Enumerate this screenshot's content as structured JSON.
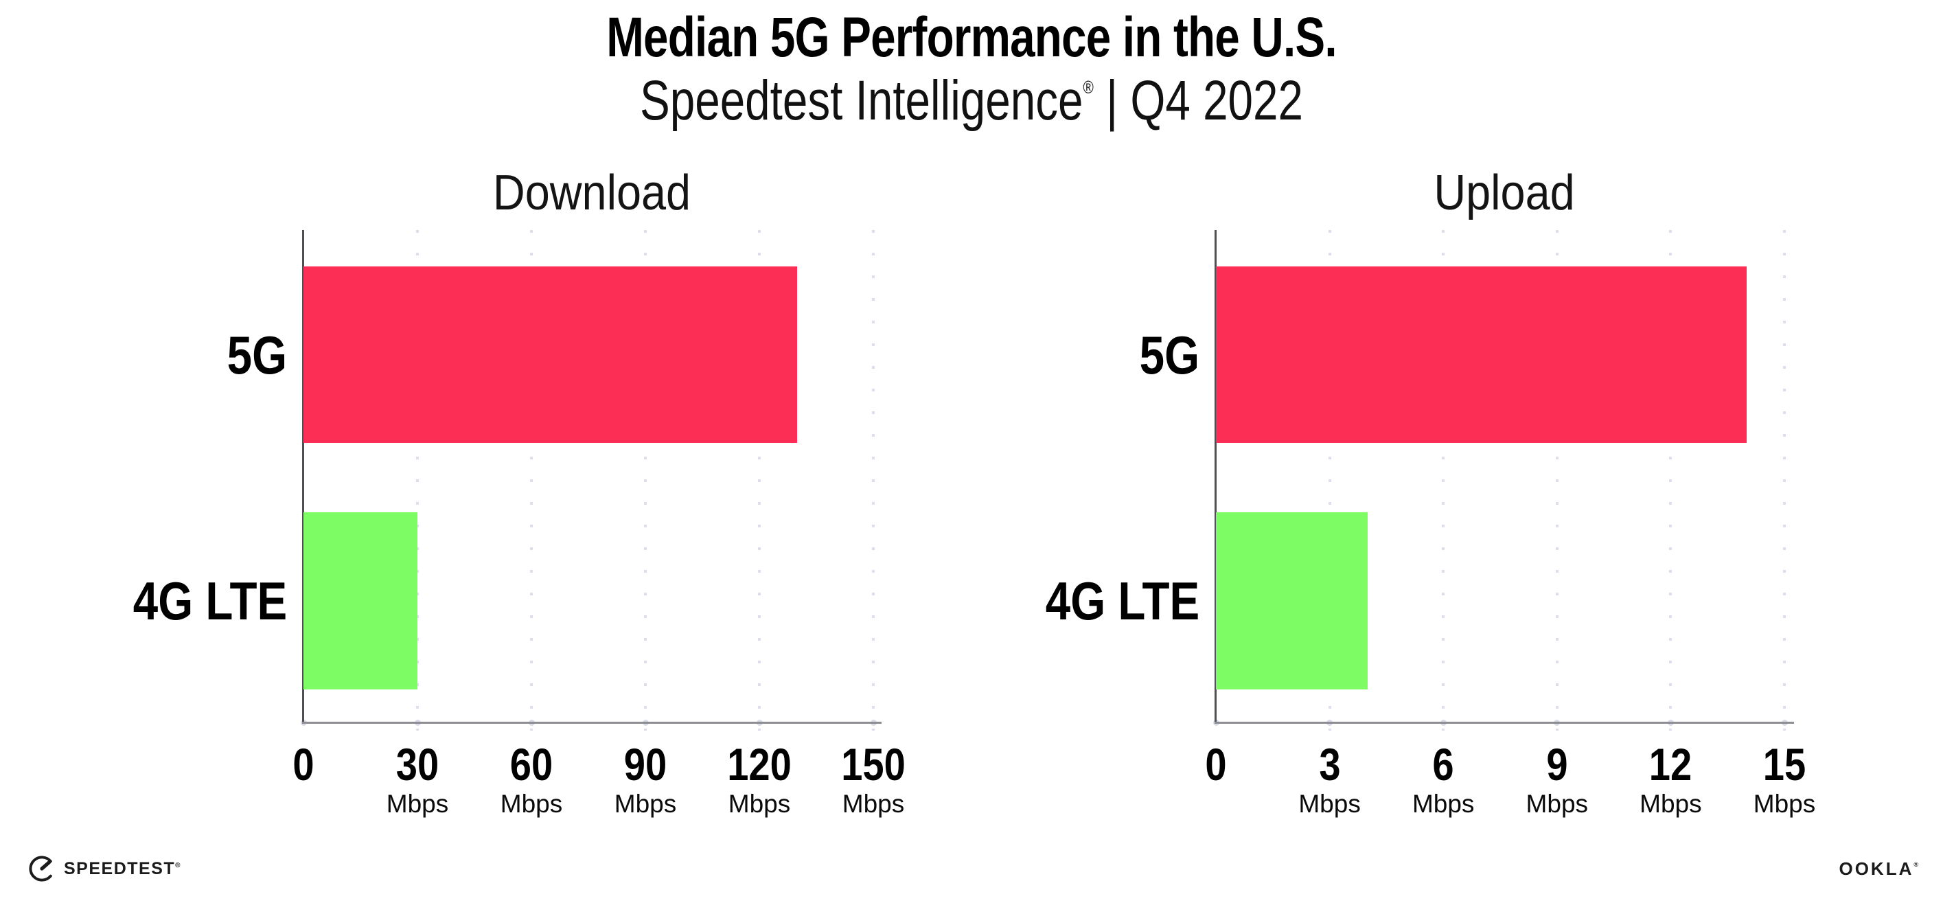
{
  "header": {
    "title": "Median 5G Performance in the U.S.",
    "subtitle_brand": "Speedtest Intelligence",
    "subtitle_reg": "®",
    "subtitle_rest": " | Q4 2022"
  },
  "chart_data": [
    {
      "type": "bar",
      "orientation": "horizontal",
      "title": "Download",
      "categories": [
        "5G",
        "4G LTE"
      ],
      "values": [
        130,
        30
      ],
      "unit": "Mbps",
      "xlabel": "",
      "xlim": [
        0,
        150
      ],
      "ticks": [
        0,
        30,
        60,
        90,
        120,
        150
      ],
      "bar_colors": [
        "#fc2e56",
        "#7dfc64"
      ],
      "grid": "dotted-vertical",
      "legend": "none"
    },
    {
      "type": "bar",
      "orientation": "horizontal",
      "title": "Upload",
      "categories": [
        "5G",
        "4G LTE"
      ],
      "values": [
        14,
        4
      ],
      "unit": "Mbps",
      "xlabel": "",
      "xlim": [
        0,
        15
      ],
      "ticks": [
        0,
        3,
        6,
        9,
        12,
        15
      ],
      "bar_colors": [
        "#fc2e56",
        "#7dfc64"
      ],
      "grid": "dotted-vertical",
      "legend": "none"
    }
  ],
  "colors": {
    "bar_5g": "#fc2e56",
    "bar_4g_lte": "#7dfc64",
    "grid_dot": "#dcdeec",
    "x_axis_line": "#8d8d93",
    "y_axis_line": "#4f4f54",
    "text": "#000000"
  },
  "footer": {
    "speedtest_label": "SPEEDTEST",
    "speedtest_reg": "®",
    "ookla_label": "OOKLA",
    "ookla_reg": "®"
  }
}
